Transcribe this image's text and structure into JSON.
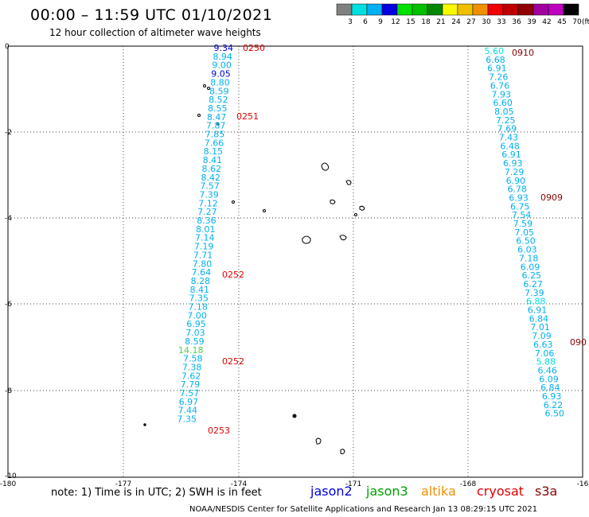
{
  "title": "00:00 – 11:59 UTC 01/10/2021",
  "subtitle": "12 hour collection of altimeter wave heights",
  "legend": {
    "unit_label": "(ft)",
    "colors": [
      "#808080",
      "#00e0e0",
      "#00b0f0",
      "#0000e0",
      "#00e000",
      "#00c000",
      "#008800",
      "#f8f800",
      "#f0c000",
      "#f09000",
      "#f00000",
      "#c00000",
      "#900000",
      "#a000a0",
      "#c000c0",
      "#000000"
    ],
    "labels": [
      "3",
      "6",
      "9",
      "12",
      "15",
      "18",
      "21",
      "24",
      "27",
      "30",
      "33",
      "36",
      "39",
      "42",
      "45",
      "70"
    ]
  },
  "axes": {
    "y_labels": [
      "0",
      "-2",
      "-4",
      "-6",
      "-8",
      "-10"
    ],
    "x_labels": [
      "-180",
      "-177",
      "-174",
      "-171",
      "-168",
      "-16"
    ]
  },
  "tracks": [
    {
      "name": "track-1",
      "time_labels": [
        {
          "text": "0250",
          "color": "#e00000"
        },
        {
          "text": "0251",
          "color": "#e00000"
        },
        {
          "text": "0252",
          "color": "#e00000"
        },
        {
          "text": "0252",
          "color": "#e00000"
        },
        {
          "text": "0253",
          "color": "#e00000"
        }
      ],
      "points": [
        {
          "v": "9.34",
          "c": "#0000e0"
        },
        {
          "v": "8.94",
          "c": "#00b0f0"
        },
        {
          "v": "9.00",
          "c": "#00b0f0"
        },
        {
          "v": "9.05",
          "c": "#0000e0"
        },
        {
          "v": "8.80",
          "c": "#00b0f0"
        },
        {
          "v": "8.59",
          "c": "#00b0f0"
        },
        {
          "v": "8.52",
          "c": "#00b0f0"
        },
        {
          "v": "8.55",
          "c": "#00b0f0"
        },
        {
          "v": "8.47",
          "c": "#00b0f0"
        },
        {
          "v": "7.87",
          "c": "#00b0f0"
        },
        {
          "v": "7.85",
          "c": "#00b0f0"
        },
        {
          "v": "7.66",
          "c": "#00b0f0"
        },
        {
          "v": "8.15",
          "c": "#00b0f0"
        },
        {
          "v": "8.41",
          "c": "#00b0f0"
        },
        {
          "v": "8.62",
          "c": "#00b0f0"
        },
        {
          "v": "8.42",
          "c": "#00b0f0"
        },
        {
          "v": "7.57",
          "c": "#00b0f0"
        },
        {
          "v": "7.39",
          "c": "#00b0f0"
        },
        {
          "v": "7.12",
          "c": "#00b0f0"
        },
        {
          "v": "7.27",
          "c": "#00b0f0"
        },
        {
          "v": "8.36",
          "c": "#00b0f0"
        },
        {
          "v": "8.01",
          "c": "#00b0f0"
        },
        {
          "v": "7.14",
          "c": "#00b0f0"
        },
        {
          "v": "7.19",
          "c": "#00b0f0"
        },
        {
          "v": "7.71",
          "c": "#00b0f0"
        },
        {
          "v": "7.80",
          "c": "#00b0f0"
        },
        {
          "v": "7.64",
          "c": "#00b0f0"
        },
        {
          "v": "8.28",
          "c": "#00b0f0"
        },
        {
          "v": "8.41",
          "c": "#00b0f0"
        },
        {
          "v": "7.35",
          "c": "#00b0f0"
        },
        {
          "v": "7.18",
          "c": "#00b0f0"
        },
        {
          "v": "7.00",
          "c": "#00b0f0"
        },
        {
          "v": "6.95",
          "c": "#00b0f0"
        },
        {
          "v": "7.03",
          "c": "#00b0f0"
        },
        {
          "v": "8.59",
          "c": "#00b0f0"
        },
        {
          "v": "14.18",
          "c": "#50d050"
        },
        {
          "v": "7.58",
          "c": "#00b0f0"
        },
        {
          "v": "7.38",
          "c": "#00b0f0"
        },
        {
          "v": "7.62",
          "c": "#00b0f0"
        },
        {
          "v": "7.79",
          "c": "#00b0f0"
        },
        {
          "v": "7.57",
          "c": "#00b0f0"
        },
        {
          "v": "6.97",
          "c": "#00b0f0"
        },
        {
          "v": "7.44",
          "c": "#00b0f0"
        },
        {
          "v": "7.35",
          "c": "#00b0f0"
        }
      ]
    },
    {
      "name": "track-2",
      "time_labels": [
        {
          "text": "0910",
          "color": "#8b0000"
        },
        {
          "text": "0909",
          "color": "#8b0000"
        },
        {
          "text": "090",
          "color": "#8b0000"
        }
      ],
      "points": [
        {
          "v": "5.60",
          "c": "#00e0e0"
        },
        {
          "v": "6.68",
          "c": "#00b0f0"
        },
        {
          "v": "6.91",
          "c": "#00b0f0"
        },
        {
          "v": "7.26",
          "c": "#00b0f0"
        },
        {
          "v": "6.76",
          "c": "#00b0f0"
        },
        {
          "v": "7.93",
          "c": "#00b0f0"
        },
        {
          "v": "6.60",
          "c": "#00b0f0"
        },
        {
          "v": "8.05",
          "c": "#00b0f0"
        },
        {
          "v": "7.25",
          "c": "#00b0f0"
        },
        {
          "v": "7.69",
          "c": "#00b0f0"
        },
        {
          "v": "7.43",
          "c": "#00b0f0"
        },
        {
          "v": "6.48",
          "c": "#00b0f0"
        },
        {
          "v": "6.91",
          "c": "#00b0f0"
        },
        {
          "v": "6.93",
          "c": "#00b0f0"
        },
        {
          "v": "7.29",
          "c": "#00b0f0"
        },
        {
          "v": "6.90",
          "c": "#00b0f0"
        },
        {
          "v": "6.78",
          "c": "#00b0f0"
        },
        {
          "v": "6.93",
          "c": "#00b0f0"
        },
        {
          "v": "6.75",
          "c": "#00b0f0"
        },
        {
          "v": "7.54",
          "c": "#00b0f0"
        },
        {
          "v": "7.59",
          "c": "#00b0f0"
        },
        {
          "v": "7.05",
          "c": "#00b0f0"
        },
        {
          "v": "6.50",
          "c": "#00b0f0"
        },
        {
          "v": "6.03",
          "c": "#00b0f0"
        },
        {
          "v": "7.18",
          "c": "#00b0f0"
        },
        {
          "v": "6.09",
          "c": "#00b0f0"
        },
        {
          "v": "6.25",
          "c": "#00b0f0"
        },
        {
          "v": "6.27",
          "c": "#00b0f0"
        },
        {
          "v": "7.39",
          "c": "#00b0f0"
        },
        {
          "v": "6.88",
          "c": "#00e0e0"
        },
        {
          "v": "6.91",
          "c": "#00b0f0"
        },
        {
          "v": "6.84",
          "c": "#00b0f0"
        },
        {
          "v": "7.01",
          "c": "#00b0f0"
        },
        {
          "v": "7.09",
          "c": "#00b0f0"
        },
        {
          "v": "6.63",
          "c": "#00b0f0"
        },
        {
          "v": "7.06",
          "c": "#00b0f0"
        },
        {
          "v": "5.88",
          "c": "#00e0e0"
        },
        {
          "v": "6.46",
          "c": "#00b0f0"
        },
        {
          "v": "6.09",
          "c": "#00b0f0"
        },
        {
          "v": "6.84",
          "c": "#00b0f0"
        },
        {
          "v": "6.93",
          "c": "#00b0f0"
        },
        {
          "v": "6.22",
          "c": "#00b0f0"
        },
        {
          "v": "6.50",
          "c": "#00b0f0"
        }
      ]
    }
  ],
  "footer": {
    "note": "note:  1) Time is in UTC;  2) SWH is in feet",
    "missions": [
      {
        "name": "jason2",
        "color": "#0000e0"
      },
      {
        "name": "jason3",
        "color": "#00a000"
      },
      {
        "name": "altika",
        "color": "#f09000"
      },
      {
        "name": "cryosat",
        "color": "#e00000"
      },
      {
        "name": "s3a",
        "color": "#8b0000"
      }
    ],
    "credit": "NOAA/NESDIS Center for Satellite Applications and Research     Jan 13 08:29:15 UTC 2021"
  }
}
